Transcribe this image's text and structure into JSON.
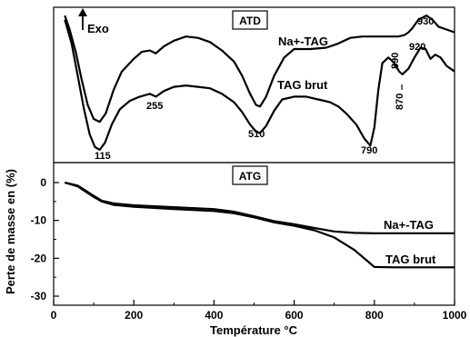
{
  "chart_data": [
    {
      "type": "line",
      "panel_title": "ATD",
      "x_range": [
        0,
        1000
      ],
      "axis": "shared-x, no y ticks (DTA signal)",
      "exo_label": "Exo",
      "series": [
        {
          "name": "Na⁺-TAG",
          "label_text": "Na+-TAG",
          "points": [
            [
              28,
              0.02
            ],
            [
              40,
              0.12
            ],
            [
              55,
              0.28
            ],
            [
              70,
              0.48
            ],
            [
              85,
              0.66
            ],
            [
              100,
              0.76
            ],
            [
              115,
              0.78
            ],
            [
              130,
              0.72
            ],
            [
              150,
              0.55
            ],
            [
              170,
              0.42
            ],
            [
              200,
              0.33
            ],
            [
              220,
              0.28
            ],
            [
              240,
              0.27
            ],
            [
              255,
              0.29
            ],
            [
              275,
              0.24
            ],
            [
              300,
              0.2
            ],
            [
              330,
              0.17
            ],
            [
              360,
              0.18
            ],
            [
              390,
              0.21
            ],
            [
              420,
              0.27
            ],
            [
              450,
              0.35
            ],
            [
              470,
              0.45
            ],
            [
              490,
              0.58
            ],
            [
              505,
              0.66
            ],
            [
              515,
              0.67
            ],
            [
              530,
              0.6
            ],
            [
              550,
              0.45
            ],
            [
              575,
              0.32
            ],
            [
              600,
              0.26
            ],
            [
              640,
              0.26
            ],
            [
              680,
              0.25
            ],
            [
              710,
              0.22
            ],
            [
              740,
              0.18
            ],
            [
              770,
              0.17
            ],
            [
              800,
              0.17
            ],
            [
              830,
              0.17
            ],
            [
              860,
              0.17
            ],
            [
              875,
              0.16
            ],
            [
              885,
              0.14
            ],
            [
              895,
              0.11
            ],
            [
              910,
              0.05
            ],
            [
              930,
              0.02
            ],
            [
              945,
              0.05
            ],
            [
              960,
              0.1
            ],
            [
              980,
              0.12
            ],
            [
              1000,
              0.14
            ]
          ]
        },
        {
          "name": "TAG brut",
          "label_text": "TAG brut",
          "points": [
            [
              28,
              0.05
            ],
            [
              45,
              0.22
            ],
            [
              60,
              0.45
            ],
            [
              75,
              0.68
            ],
            [
              90,
              0.87
            ],
            [
              103,
              0.96
            ],
            [
              115,
              0.98
            ],
            [
              128,
              0.93
            ],
            [
              145,
              0.8
            ],
            [
              165,
              0.69
            ],
            [
              190,
              0.63
            ],
            [
              215,
              0.6
            ],
            [
              240,
              0.58
            ],
            [
              255,
              0.6
            ],
            [
              275,
              0.56
            ],
            [
              300,
              0.53
            ],
            [
              330,
              0.52
            ],
            [
              360,
              0.53
            ],
            [
              390,
              0.54
            ],
            [
              420,
              0.58
            ],
            [
              450,
              0.64
            ],
            [
              470,
              0.71
            ],
            [
              490,
              0.8
            ],
            [
              505,
              0.85
            ],
            [
              515,
              0.86
            ],
            [
              530,
              0.81
            ],
            [
              550,
              0.7
            ],
            [
              570,
              0.62
            ],
            [
              600,
              0.6
            ],
            [
              630,
              0.6
            ],
            [
              660,
              0.62
            ],
            [
              690,
              0.64
            ],
            [
              710,
              0.67
            ],
            [
              730,
              0.72
            ],
            [
              755,
              0.8
            ],
            [
              775,
              0.9
            ],
            [
              790,
              0.95
            ],
            [
              800,
              0.82
            ],
            [
              810,
              0.55
            ],
            [
              820,
              0.36
            ],
            [
              835,
              0.32
            ],
            [
              850,
              0.36
            ],
            [
              862,
              0.42
            ],
            [
              870,
              0.44
            ],
            [
              885,
              0.4
            ],
            [
              900,
              0.32
            ],
            [
              915,
              0.25
            ],
            [
              928,
              0.26
            ],
            [
              940,
              0.33
            ],
            [
              952,
              0.3
            ],
            [
              965,
              0.32
            ],
            [
              980,
              0.38
            ],
            [
              1000,
              0.42
            ]
          ]
        }
      ],
      "annotations": [
        "115",
        "255",
        "510",
        "790",
        "870",
        "890",
        "920",
        "930"
      ]
    },
    {
      "type": "line",
      "panel_title": "ATG",
      "xlabel": "Température °C",
      "ylabel": "Perte de masse en (%)",
      "x_range": [
        0,
        1000
      ],
      "ylim": [
        -30,
        3
      ],
      "x_ticks": [
        "0",
        "200",
        "400",
        "600",
        "800",
        "1000"
      ],
      "y_ticks": [
        "0",
        "-10",
        "-20",
        "-30"
      ],
      "series": [
        {
          "name": "Na⁺-TAG",
          "label_text": "Na+-TAG",
          "x": [
            28,
            60,
            100,
            120,
            150,
            200,
            300,
            400,
            450,
            500,
            550,
            600,
            650,
            700,
            750,
            800,
            900,
            1000
          ],
          "y": [
            0,
            -0.8,
            -3.5,
            -4.8,
            -5.5,
            -6.0,
            -6.5,
            -7.0,
            -7.7,
            -8.9,
            -10.2,
            -11.0,
            -12.0,
            -12.9,
            -13.3,
            -13.4,
            -13.4,
            -13.4
          ]
        },
        {
          "name": "TAG brut",
          "label_text": "TAG brut",
          "x": [
            28,
            60,
            100,
            120,
            150,
            200,
            300,
            400,
            450,
            500,
            550,
            600,
            650,
            700,
            750,
            780,
            800,
            850,
            900,
            1000
          ],
          "y": [
            0,
            -1.0,
            -3.8,
            -5.0,
            -5.9,
            -6.4,
            -7.0,
            -7.5,
            -8.1,
            -9.2,
            -10.5,
            -11.4,
            -12.6,
            -14.5,
            -17.8,
            -20.5,
            -22.3,
            -22.4,
            -22.4,
            -22.4
          ]
        }
      ]
    }
  ]
}
